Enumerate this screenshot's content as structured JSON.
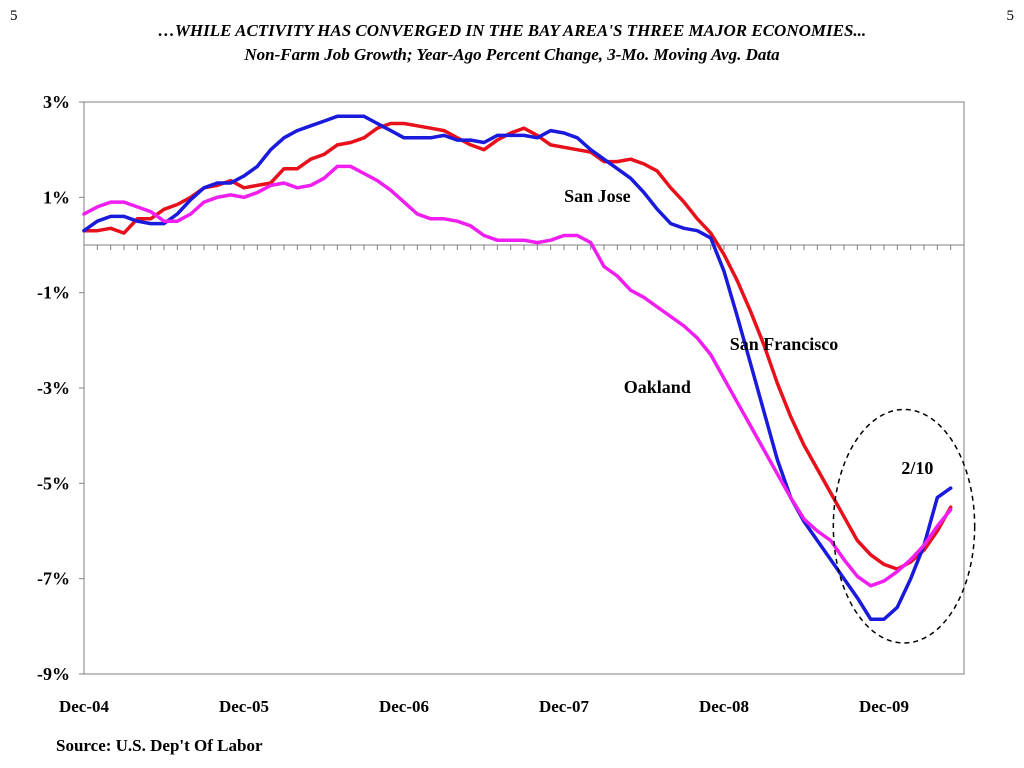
{
  "header": {
    "page_number": "5",
    "title": "…WHILE ACTIVITY HAS CONVERGED IN THE BAY AREA'S THREE MAJOR ECONOMIES...",
    "subtitle": "Non-Farm Job Growth; Year-Ago Percent Change, 3-Mo. Moving Avg. Data"
  },
  "footer": {
    "source": "Source: U.S. Dep't Of Labor"
  },
  "colors": {
    "san_francisco": "#e8101a",
    "san_jose": "#1a1adc",
    "oakland": "#f01ef0",
    "axis": "#808080"
  },
  "chart_data": {
    "type": "line",
    "title": "…WHILE ACTIVITY HAS CONVERGED IN THE BAY AREA'S THREE MAJOR ECONOMIES...",
    "subtitle": "Non-Farm Job Growth; Year-Ago Percent Change, 3-Mo. Moving Avg. Data",
    "xlabel": "",
    "ylabel": "",
    "ylim": [
      -9,
      3
    ],
    "y_ticks": [
      "3%",
      "1%",
      "-1%",
      "-3%",
      "-5%",
      "-7%",
      "-9%"
    ],
    "y_tick_values": [
      3,
      1,
      -1,
      -3,
      -5,
      -7,
      -9
    ],
    "x_tick_labels": [
      "Dec-04",
      "Dec-05",
      "Dec-06",
      "Dec-07",
      "Dec-08",
      "Dec-09"
    ],
    "x_tick_month_index": [
      0,
      12,
      24,
      36,
      48,
      60
    ],
    "x_range_months": [
      0,
      66
    ],
    "months_start": "Dec-04",
    "grid": false,
    "zero_line": true,
    "annotations": [
      {
        "text": "San Jose",
        "month": 38.5,
        "value": 0.9
      },
      {
        "text": "San Francisco",
        "month": 52.5,
        "value": -2.2
      },
      {
        "text": "Oakland",
        "month": 43,
        "value": -3.1
      },
      {
        "text": "2/10",
        "month": 62.5,
        "value": -4.8
      }
    ],
    "highlight_ellipse": {
      "center_month": 61.5,
      "center_value": -5.9,
      "rx_months": 5.3,
      "ry_value": 2.45
    },
    "series": [
      {
        "name": "San Francisco",
        "color": "#e8101a",
        "values": [
          0.3,
          0.3,
          0.35,
          0.25,
          0.55,
          0.55,
          0.75,
          0.85,
          1.0,
          1.2,
          1.25,
          1.35,
          1.2,
          1.25,
          1.3,
          1.6,
          1.6,
          1.8,
          1.9,
          2.1,
          2.15,
          2.25,
          2.45,
          2.55,
          2.55,
          2.5,
          2.45,
          2.4,
          2.25,
          2.1,
          2.0,
          2.2,
          2.35,
          2.45,
          2.3,
          2.1,
          2.05,
          2.0,
          1.95,
          1.75,
          1.75,
          1.8,
          1.7,
          1.55,
          1.2,
          0.9,
          0.55,
          0.25,
          -0.2,
          -0.75,
          -1.4,
          -2.1,
          -2.9,
          -3.6,
          -4.2,
          -4.7,
          -5.2,
          -5.7,
          -6.2,
          -6.5,
          -6.7,
          -6.8,
          -6.65,
          -6.4,
          -6.0,
          -5.5
        ]
      },
      {
        "name": "San Jose",
        "color": "#1a1adc",
        "values": [
          0.3,
          0.5,
          0.6,
          0.6,
          0.5,
          0.45,
          0.45,
          0.65,
          0.95,
          1.2,
          1.3,
          1.3,
          1.45,
          1.65,
          2.0,
          2.25,
          2.4,
          2.5,
          2.6,
          2.7,
          2.7,
          2.7,
          2.55,
          2.4,
          2.25,
          2.25,
          2.25,
          2.3,
          2.2,
          2.2,
          2.15,
          2.3,
          2.3,
          2.3,
          2.25,
          2.4,
          2.35,
          2.25,
          2.0,
          1.8,
          1.6,
          1.4,
          1.1,
          0.75,
          0.45,
          0.35,
          0.3,
          0.15,
          -0.55,
          -1.5,
          -2.5,
          -3.5,
          -4.5,
          -5.3,
          -5.8,
          -6.2,
          -6.6,
          -7.0,
          -7.4,
          -7.85,
          -7.85,
          -7.6,
          -7.0,
          -6.3,
          -5.3,
          -5.1
        ]
      },
      {
        "name": "Oakland",
        "color": "#f01ef0",
        "values": [
          0.65,
          0.8,
          0.9,
          0.9,
          0.8,
          0.7,
          0.5,
          0.5,
          0.65,
          0.9,
          1.0,
          1.05,
          1.0,
          1.1,
          1.25,
          1.3,
          1.2,
          1.25,
          1.4,
          1.65,
          1.65,
          1.5,
          1.35,
          1.15,
          0.9,
          0.65,
          0.55,
          0.55,
          0.5,
          0.4,
          0.2,
          0.1,
          0.1,
          0.1,
          0.05,
          0.1,
          0.2,
          0.2,
          0.05,
          -0.45,
          -0.65,
          -0.95,
          -1.1,
          -1.3,
          -1.5,
          -1.7,
          -1.95,
          -2.3,
          -2.8,
          -3.3,
          -3.8,
          -4.3,
          -4.8,
          -5.3,
          -5.75,
          -6.0,
          -6.2,
          -6.6,
          -6.95,
          -7.15,
          -7.05,
          -6.85,
          -6.6,
          -6.3,
          -5.9,
          -5.55
        ]
      }
    ]
  }
}
